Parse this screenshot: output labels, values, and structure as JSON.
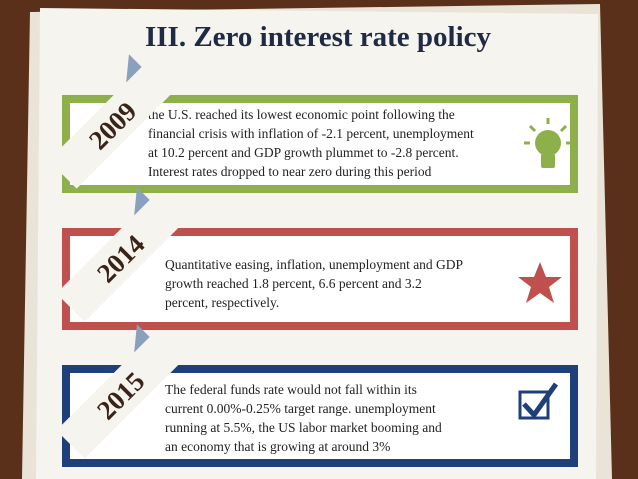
{
  "header": {
    "title": "III. Zero interest rate policy"
  },
  "items": [
    {
      "year": "2009",
      "lines": [
        "the U.S. reached its lowest economic point following the",
        "financial crisis with inflation of -2.1 percent, unemployment",
        "at 10.2 percent and GDP growth plummet  to -2.8 percent.",
        "Interest rates dropped to near zero during this period"
      ]
    },
    {
      "year": "2014",
      "lines": [
        "Quantitative easing, inflation, unemployment and GDP",
        "growth reached 1.8 percent, 6.6 percent and 3.2",
        "percent, respectively."
      ]
    },
    {
      "year": "2015",
      "lines": [
        "The federal funds rate would not fall within its",
        "current 0.00%-0.25% target range. unemployment",
        "running at 5.5%, the US labor market booming and",
        "an economy that is growing at around 3%"
      ]
    }
  ]
}
